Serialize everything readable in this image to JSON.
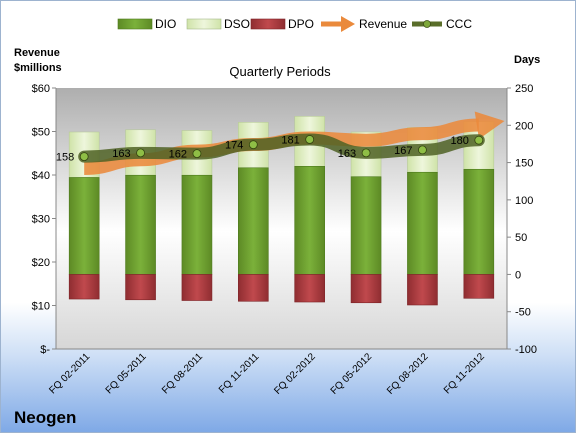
{
  "company_name": "Neogen",
  "chart_data": {
    "type": "bar",
    "title": "Quarterly Periods",
    "left_axis_label_line1": "Revenue",
    "left_axis_label_line2": "$millions",
    "right_axis_label": "Days",
    "categories": [
      "FQ 02-2011",
      "FQ 05-2011",
      "FQ 08-2011",
      "FQ 11-2011",
      "FQ 02-2012",
      "FQ 05-2012",
      "FQ 08-2012",
      "FQ 11-2012"
    ],
    "left_ylim": [
      0,
      60
    ],
    "left_ticks": [
      {
        "value": 0,
        "label": "$-"
      },
      {
        "value": 10,
        "label": "$10"
      },
      {
        "value": 20,
        "label": "$20"
      },
      {
        "value": 30,
        "label": "$30"
      },
      {
        "value": 40,
        "label": "$40"
      },
      {
        "value": 50,
        "label": "$50"
      },
      {
        "value": 60,
        "label": "$60"
      }
    ],
    "right_ylim": [
      -100,
      250
    ],
    "right_ticks": [
      {
        "value": -100,
        "label": "-100"
      },
      {
        "value": -50,
        "label": "-50"
      },
      {
        "value": 0,
        "label": "0"
      },
      {
        "value": 50,
        "label": "50"
      },
      {
        "value": 100,
        "label": "100"
      },
      {
        "value": 150,
        "label": "150"
      },
      {
        "value": 200,
        "label": "200"
      },
      {
        "value": 250,
        "label": "250"
      }
    ],
    "series": [
      {
        "name": "DIO",
        "axis": "right",
        "color": "#6b9a2c",
        "values": [
          130,
          133,
          133,
          143,
          145,
          131,
          137,
          141
        ]
      },
      {
        "name": "DSO",
        "axis": "right",
        "color": "#dcebc0",
        "values": [
          61,
          61,
          60,
          61,
          67,
          60,
          60,
          64
        ]
      },
      {
        "name": "DPO",
        "axis": "right",
        "color": "#a33a3e",
        "values": [
          -33,
          -34,
          -35,
          -36,
          -37,
          -38,
          -41,
          -32
        ]
      },
      {
        "name": "Revenue",
        "axis": "left",
        "color": "#ea8a3c",
        "values": [
          41.5,
          43.5,
          45.5,
          47,
          48.5,
          48,
          49.5,
          51.5
        ]
      },
      {
        "name": "CCC",
        "axis": "right",
        "color": "#5a6e2a",
        "values": [
          158,
          163,
          162,
          174,
          181,
          163,
          167,
          180
        ]
      }
    ],
    "ccc_labels": [
      "158",
      "163",
      "162",
      "174",
      "181",
      "163",
      "167",
      "180"
    ],
    "legend_position": "top",
    "grid": false
  }
}
